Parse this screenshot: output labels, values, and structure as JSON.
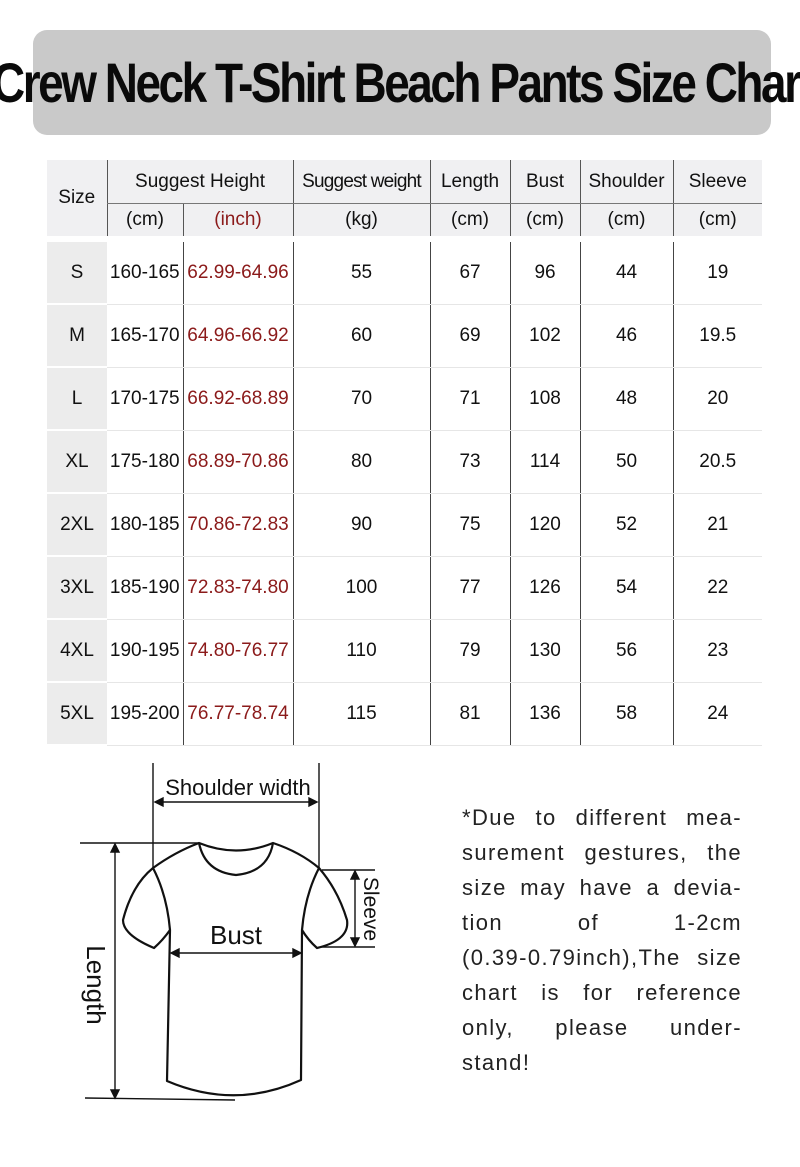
{
  "title": "Crew Neck T-Shirt Beach Pants Size Chart",
  "table": {
    "headers": {
      "size": "Size",
      "height": "Suggest Height",
      "weight": "Suggest weight",
      "length": "Length",
      "bust": "Bust",
      "shoulder": "Shoulder",
      "sleeve": "Sleeve"
    },
    "units": {
      "height_cm": "(cm)",
      "height_inch": "(inch)",
      "weight": "(kg)",
      "length": "(cm)",
      "bust": "(cm)",
      "shoulder": "(cm)",
      "sleeve": "(cm)"
    },
    "rows": [
      {
        "size": "S",
        "cm": "160-165",
        "inch": "62.99-64.96",
        "kg": "55",
        "length": "67",
        "bust": "96",
        "shoulder": "44",
        "sleeve": "19"
      },
      {
        "size": "M",
        "cm": "165-170",
        "inch": "64.96-66.92",
        "kg": "60",
        "length": "69",
        "bust": "102",
        "shoulder": "46",
        "sleeve": "19.5"
      },
      {
        "size": "L",
        "cm": "170-175",
        "inch": "66.92-68.89",
        "kg": "70",
        "length": "71",
        "bust": "108",
        "shoulder": "48",
        "sleeve": "20"
      },
      {
        "size": "XL",
        "cm": "175-180",
        "inch": "68.89-70.86",
        "kg": "80",
        "length": "73",
        "bust": "114",
        "shoulder": "50",
        "sleeve": "20.5"
      },
      {
        "size": "2XL",
        "cm": "180-185",
        "inch": "70.86-72.83",
        "kg": "90",
        "length": "75",
        "bust": "120",
        "shoulder": "52",
        "sleeve": "21"
      },
      {
        "size": "3XL",
        "cm": "185-190",
        "inch": "72.83-74.80",
        "kg": "100",
        "length": "77",
        "bust": "126",
        "shoulder": "54",
        "sleeve": "22"
      },
      {
        "size": "4XL",
        "cm": "190-195",
        "inch": "74.80-76.77",
        "kg": "110",
        "length": "79",
        "bust": "130",
        "shoulder": "56",
        "sleeve": "23"
      },
      {
        "size": "5XL",
        "cm": "195-200",
        "inch": "76.77-78.74",
        "kg": "115",
        "length": "81",
        "bust": "136",
        "shoulder": "58",
        "sleeve": "24"
      }
    ]
  },
  "diagram": {
    "shoulder_label": "Shoulder width",
    "bust_label": "Bust",
    "sleeve_label": "Sleeve",
    "length_label": "Length"
  },
  "note_lines": [
    "*Due to different mea-",
    "surement gestures, the",
    "size may have a devia-",
    "tion of 1-2cm",
    "(0.39-0.79inch),The size",
    "chart is for reference",
    "only, please under-",
    "stand!"
  ],
  "colors": {
    "banner": "#c9c9c9",
    "inch_text": "#8b1a1a",
    "header_bg": "#f0f0f2"
  }
}
